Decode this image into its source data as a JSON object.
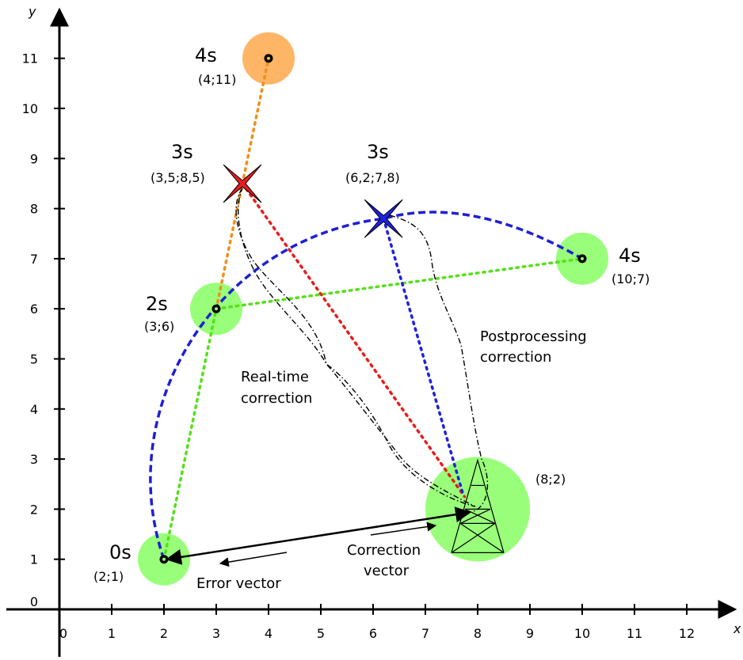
{
  "axes": {
    "x_label": "x",
    "y_label": "y",
    "x_ticks": [
      "0",
      "1",
      "2",
      "3",
      "4",
      "5",
      "6",
      "7",
      "8",
      "9",
      "10",
      "11",
      "12"
    ],
    "y_ticks": [
      "0",
      "1",
      "2",
      "3",
      "4",
      "5",
      "6",
      "7",
      "8",
      "9",
      "10",
      "11"
    ]
  },
  "points": [
    {
      "id": "p0",
      "time": "0s",
      "coord": "(2;1)",
      "x": 2,
      "y": 1,
      "color": "#99ff7a",
      "kind": "circle"
    },
    {
      "id": "p2",
      "time": "2s",
      "coord": "(3;6)",
      "x": 3,
      "y": 6,
      "color": "#99ff7a",
      "kind": "circle"
    },
    {
      "id": "p4o",
      "time": "4s",
      "coord": "(4;11)",
      "x": 4,
      "y": 11,
      "color": "#ffb566",
      "kind": "circle"
    },
    {
      "id": "p4g",
      "time": "4s",
      "coord": "(10;7)",
      "x": 10,
      "y": 7,
      "color": "#99ff7a",
      "kind": "circle"
    },
    {
      "id": "p3r",
      "time": "3s",
      "coord": "(3,5;8,5)",
      "x": 3.5,
      "y": 8.5,
      "color": "#e81c1c",
      "kind": "star"
    },
    {
      "id": "p3b",
      "time": "3s",
      "coord": "(6,2;7,8)",
      "x": 6.2,
      "y": 7.8,
      "color": "#2020e0",
      "kind": "star"
    }
  ],
  "station": {
    "coord": "(8;2)",
    "x": 8,
    "y": 2,
    "color": "#99ff7a"
  },
  "labels": {
    "realtime": [
      "Real-time",
      "correction"
    ],
    "postprocessing": [
      "Postprocessing",
      "correction"
    ],
    "correction_vector": [
      "Correction",
      "vector"
    ],
    "error_vector": "Error vector"
  }
}
